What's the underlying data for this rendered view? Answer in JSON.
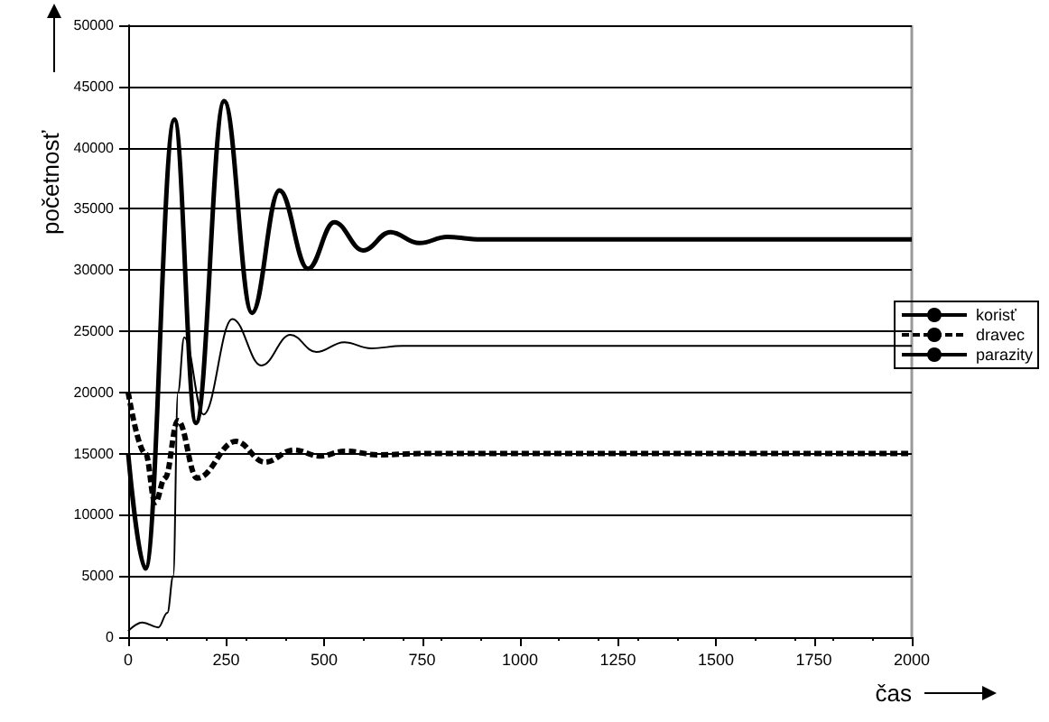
{
  "chart_data": {
    "type": "line",
    "xlabel": "čas",
    "ylabel": "početnosť",
    "xlim": [
      0,
      2000
    ],
    "xticks": [
      0,
      250,
      500,
      750,
      1000,
      1250,
      1500,
      1750,
      2000
    ],
    "ylim": [
      0,
      50000
    ],
    "yticks": [
      0,
      5000,
      10000,
      15000,
      20000,
      25000,
      30000,
      35000,
      40000,
      45000,
      50000
    ],
    "grid": "y",
    "legend": "right",
    "marker": "none",
    "series": [
      {
        "name": "korisť",
        "color": "#000000",
        "line_style": "solid",
        "x": [
          0,
          44,
          118,
          173,
          245,
          316,
          386,
          459,
          526,
          600,
          669,
          743,
          814,
          900,
          1000,
          2000
        ],
        "values": [
          15000,
          5600,
          42300,
          17500,
          43800,
          26500,
          36500,
          30100,
          33900,
          31600,
          33100,
          32200,
          32700,
          32500,
          32500,
          32500
        ]
      },
      {
        "name": "dravec",
        "color": "#000000",
        "line_style": "dashed",
        "x": [
          0,
          44,
          69,
          94,
          127,
          176,
          275,
          349,
          423,
          489,
          554,
          637,
          750,
          2000
        ],
        "values": [
          20000,
          15000,
          11000,
          13000,
          17700,
          13000,
          16000,
          14300,
          15300,
          14800,
          15200,
          14900,
          15000,
          15000
        ]
      },
      {
        "name": "parazity",
        "color": "#000000",
        "line_style": "solid",
        "x": [
          0,
          36,
          77,
          100,
          115,
          127,
          143,
          192,
          266,
          340,
          414,
          480,
          551,
          620,
          700,
          2000
        ],
        "values": [
          500,
          1200,
          800,
          2000,
          5000,
          20000,
          24500,
          18200,
          26000,
          22200,
          24700,
          23300,
          24100,
          23600,
          23800,
          23800
        ]
      }
    ]
  }
}
